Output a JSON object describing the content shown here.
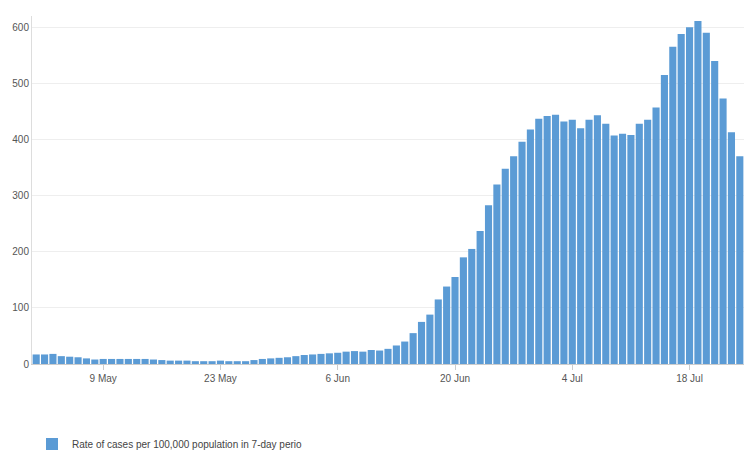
{
  "chart_data": {
    "type": "bar",
    "categories": [
      null,
      null,
      null,
      null,
      null,
      null,
      null,
      null,
      "9 May",
      null,
      null,
      null,
      null,
      null,
      null,
      null,
      null,
      null,
      null,
      null,
      null,
      null,
      "23 May",
      null,
      null,
      null,
      null,
      null,
      null,
      null,
      null,
      null,
      null,
      null,
      null,
      null,
      "6 Jun",
      null,
      null,
      null,
      null,
      null,
      null,
      null,
      null,
      null,
      null,
      null,
      null,
      null,
      "20 Jun",
      null,
      null,
      null,
      null,
      null,
      null,
      null,
      null,
      null,
      null,
      null,
      null,
      null,
      "4 Jul",
      null,
      null,
      null,
      null,
      null,
      null,
      null,
      null,
      null,
      null,
      null,
      null,
      null,
      "18 Jul",
      null,
      null,
      null,
      null,
      null,
      null
    ],
    "series": [
      {
        "name": "Rate of cases per 100,000 population in 7-day perio",
        "color": "#5b9bd5",
        "values": [
          17,
          17,
          18,
          14,
          13,
          12,
          10,
          8,
          9,
          9,
          9,
          9,
          9,
          9,
          8,
          7,
          6,
          6,
          6,
          5,
          5,
          5,
          6,
          5,
          5,
          5,
          7,
          9,
          10,
          11,
          12,
          14,
          16,
          17,
          18,
          19,
          20,
          22,
          23,
          22,
          25,
          24,
          27,
          33,
          40,
          55,
          75,
          88,
          115,
          138,
          155,
          190,
          205,
          237,
          283,
          320,
          348,
          370,
          396,
          418,
          437,
          442,
          444,
          432,
          435,
          420,
          435,
          443,
          428,
          407,
          410,
          408,
          428,
          435,
          457,
          515,
          565,
          588,
          600,
          611,
          590,
          540,
          473,
          413,
          370
        ]
      }
    ],
    "ylim": [
      0,
      620
    ],
    "yticks": [
      0,
      100,
      200,
      300,
      400,
      500,
      600
    ],
    "grid": true,
    "legend": "bottom left"
  }
}
